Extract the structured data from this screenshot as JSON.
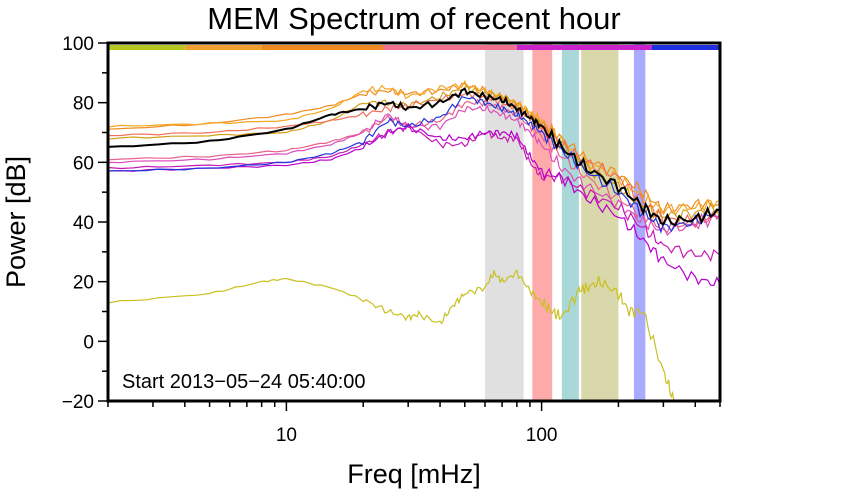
{
  "chart_data": {
    "type": "line",
    "title": "MEM Spectrum of recent hour",
    "xlabel": "Freq [mHz]",
    "ylabel": "Power [dB]",
    "x_scale": "log",
    "xlim": [
      2,
      500
    ],
    "ylim": [
      -20,
      100
    ],
    "x_ticks": [
      {
        "value": 10,
        "label": "10"
      },
      {
        "value": 100,
        "label": "100"
      }
    ],
    "y_ticks": [
      {
        "value": -20,
        "label": "−20"
      },
      {
        "value": 0,
        "label": "0"
      },
      {
        "value": 20,
        "label": "20"
      },
      {
        "value": 40,
        "label": "40"
      },
      {
        "value": 60,
        "label": "60"
      },
      {
        "value": 80,
        "label": "80"
      },
      {
        "value": 100,
        "label": "100"
      }
    ],
    "grid": false,
    "annotation": "Start 2013−05−24 05:40:00",
    "bands": [
      {
        "x0": 60,
        "x1": 85,
        "color": "#e0e0e0"
      },
      {
        "x0": 92,
        "x1": 110,
        "color": "#ffaaaa"
      },
      {
        "x0": 120,
        "x1": 140,
        "color": "#aad8d8"
      },
      {
        "x0": 143,
        "x1": 200,
        "color": "#d8d8aa"
      },
      {
        "x0": 230,
        "x1": 255,
        "color": "#aaaaff"
      }
    ],
    "top_bar": [
      {
        "x0": 2,
        "x1": 4,
        "color": "#b7c91f"
      },
      {
        "x0": 4,
        "x1": 8,
        "color": "#f0a030"
      },
      {
        "x0": 8,
        "x1": 24,
        "color": "#f08820"
      },
      {
        "x0": 24,
        "x1": 80,
        "color": "#f07090"
      },
      {
        "x0": 80,
        "x1": 270,
        "color": "#cc22cc"
      },
      {
        "x0": 270,
        "x1": 500,
        "color": "#2030e0"
      }
    ],
    "series": [
      {
        "color": "#f08c1e",
        "x": [
          2,
          5,
          10,
          15,
          20,
          25,
          30,
          40,
          50,
          60,
          70,
          80,
          90,
          100,
          120,
          150,
          200,
          250,
          300,
          400,
          500
        ],
        "y": [
          71,
          73,
          76,
          79,
          83,
          84,
          83,
          84,
          86,
          84,
          82,
          80,
          76,
          73,
          68,
          61,
          56,
          50,
          44,
          46,
          46
        ]
      },
      {
        "color": "#f5a623",
        "x": [
          2,
          5,
          10,
          15,
          20,
          25,
          30,
          40,
          50,
          60,
          70,
          80,
          90,
          100,
          120,
          150,
          200,
          250,
          300,
          400,
          500
        ],
        "y": [
          72,
          73,
          74,
          78,
          84,
          85,
          82,
          85,
          86,
          84,
          82,
          80,
          77,
          74,
          67,
          60,
          55,
          48,
          44,
          45,
          47
        ]
      },
      {
        "color": "#d4a017",
        "x": [
          2,
          5,
          10,
          15,
          20,
          25,
          30,
          40,
          50,
          60,
          70,
          80,
          90,
          100,
          120,
          150,
          200,
          250,
          300,
          400,
          500
        ],
        "y": [
          68,
          69,
          70,
          74,
          80,
          80,
          79,
          82,
          85,
          83,
          82,
          79,
          76,
          73,
          66,
          58,
          52,
          45,
          42,
          43,
          45
        ]
      },
      {
        "color": "#f0705a",
        "x": [
          2,
          5,
          10,
          15,
          20,
          25,
          30,
          40,
          50,
          60,
          70,
          80,
          90,
          100,
          120,
          150,
          200,
          250,
          300,
          400,
          500
        ],
        "y": [
          69,
          70,
          72,
          74,
          76,
          78,
          79,
          81,
          83,
          82,
          80,
          78,
          75,
          72,
          66,
          60,
          55,
          47,
          41,
          40,
          43
        ]
      },
      {
        "color": "#e8608a",
        "x": [
          2,
          5,
          10,
          15,
          20,
          25,
          30,
          40,
          50,
          60,
          70,
          80,
          90,
          100,
          120,
          150,
          200,
          250,
          300,
          400,
          500
        ],
        "y": [
          61,
          62,
          64,
          67,
          70,
          75,
          72,
          74,
          80,
          80,
          78,
          76,
          72,
          69,
          62,
          55,
          48,
          42,
          38,
          40,
          42
        ]
      },
      {
        "color": "#dd4dbb",
        "x": [
          2,
          5,
          10,
          15,
          20,
          25,
          30,
          40,
          50,
          60,
          70,
          80,
          90,
          100,
          120,
          150,
          200,
          250,
          300,
          400,
          500
        ],
        "y": [
          60,
          61,
          63,
          66,
          70,
          76,
          72,
          72,
          78,
          78,
          76,
          74,
          70,
          66,
          58,
          52,
          46,
          40,
          37,
          39,
          42
        ]
      },
      {
        "color": "#c71ab3",
        "x": [
          2,
          5,
          10,
          15,
          20,
          25,
          30,
          40,
          50,
          60,
          70,
          80,
          90,
          100,
          120,
          150,
          200,
          250,
          300,
          400,
          500
        ],
        "y": [
          58,
          59,
          60,
          62,
          66,
          70,
          72,
          66,
          66,
          70,
          68,
          68,
          60,
          55,
          55,
          50,
          45,
          38,
          32,
          29,
          29
        ]
      },
      {
        "color": "#b800cc",
        "x": [
          2,
          5,
          10,
          15,
          20,
          25,
          30,
          40,
          50,
          60,
          70,
          80,
          90,
          100,
          120,
          150,
          200,
          250,
          300,
          400,
          500
        ],
        "y": [
          57,
          58,
          59,
          61,
          65,
          70,
          72,
          68,
          68,
          70,
          70,
          69,
          62,
          57,
          55,
          48,
          42,
          34,
          27,
          21,
          19
        ]
      },
      {
        "color": "#2233dd",
        "x": [
          2,
          5,
          10,
          15,
          20,
          25,
          30,
          40,
          50,
          60,
          70,
          80,
          90,
          100,
          120,
          150,
          200,
          250,
          300,
          400,
          500
        ],
        "y": [
          57,
          58,
          60,
          63,
          67,
          74,
          72,
          75,
          82,
          80,
          78,
          76,
          73,
          70,
          64,
          57,
          50,
          43,
          38,
          40,
          44
        ]
      },
      {
        "color": "#000000",
        "x": [
          2,
          5,
          10,
          15,
          20,
          25,
          30,
          40,
          50,
          60,
          70,
          80,
          90,
          100,
          120,
          150,
          200,
          250,
          300,
          400,
          500
        ],
        "y": [
          65,
          67,
          71,
          76,
          78,
          80,
          78,
          80,
          84,
          82,
          81,
          78,
          75,
          72,
          65,
          58,
          52,
          45,
          40,
          41,
          44
        ]
      },
      {
        "color": "#c8c020",
        "x": [
          2,
          5,
          8,
          10,
          15,
          20,
          25,
          30,
          33,
          40,
          45,
          50,
          60,
          65,
          70,
          80,
          90,
          100,
          110,
          120,
          140,
          150,
          170,
          200,
          220,
          250,
          300,
          330
        ],
        "y": [
          13,
          16,
          20,
          21,
          18,
          14,
          10,
          8,
          9,
          6,
          12,
          16,
          18,
          23,
          20,
          23,
          17,
          13,
          10,
          8,
          17,
          18,
          20,
          16,
          10,
          10,
          -10,
          -20
        ]
      }
    ]
  }
}
